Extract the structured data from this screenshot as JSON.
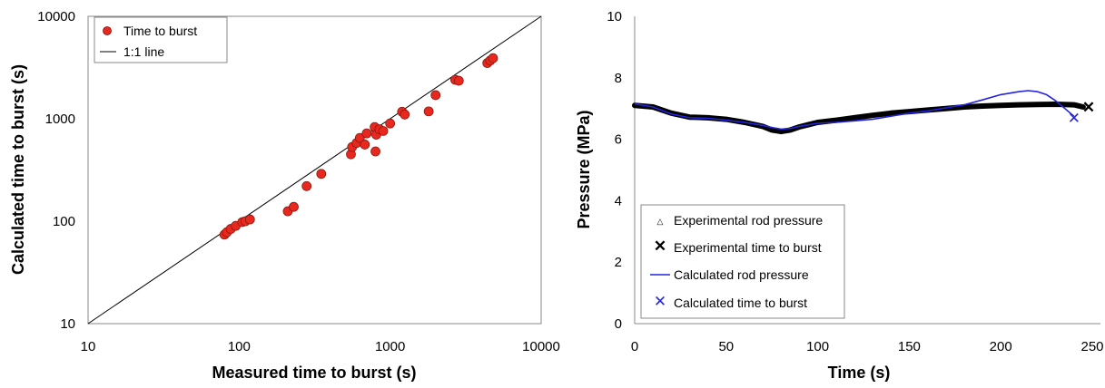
{
  "chart_data": [
    {
      "type": "scatter",
      "xscale": "log",
      "yscale": "log",
      "xlabel": "Measured time to burst (s)",
      "ylabel": "Calculated time to burst (s)",
      "xlim": [
        10,
        10000
      ],
      "ylim": [
        10,
        10000
      ],
      "xticks": [
        "10",
        "100",
        "1000",
        "10000"
      ],
      "yticks": [
        "10",
        "100",
        "1000",
        "10000"
      ],
      "grid": false,
      "legend_position": "top-left",
      "legend": [
        "Time to burst",
        "1:1 line"
      ],
      "series": [
        {
          "name": "Time to burst",
          "color": "#e8281e",
          "x": [
            80,
            83,
            88,
            95,
            105,
            110,
            118,
            210,
            230,
            280,
            350,
            550,
            560,
            600,
            630,
            680,
            700,
            790,
            800,
            810,
            850,
            900,
            1000,
            1200,
            1250,
            1800,
            2000,
            2700,
            2850,
            4400,
            4600,
            4800
          ],
          "y": [
            74,
            78,
            84,
            90,
            98,
            100,
            104,
            125,
            138,
            220,
            290,
            450,
            530,
            580,
            650,
            560,
            720,
            830,
            480,
            700,
            790,
            760,
            900,
            1170,
            1100,
            1180,
            1700,
            2400,
            2350,
            3500,
            3700,
            3900
          ]
        },
        {
          "name": "1:1 line",
          "color": "#000000",
          "x": [
            10,
            10000
          ],
          "y": [
            10,
            10000
          ]
        }
      ]
    },
    {
      "type": "line",
      "xlabel": "Time (s)",
      "ylabel": "Pressure (MPa)",
      "xlim": [
        0,
        250
      ],
      "ylim": [
        0,
        10
      ],
      "xticks": [
        "0",
        "50",
        "100",
        "150",
        "200",
        "250"
      ],
      "yticks": [
        "0",
        "2",
        "4",
        "6",
        "8",
        "10"
      ],
      "grid": false,
      "legend_position": "bottom-left",
      "legend": [
        "Experimental rod pressure",
        "Experimental time to burst",
        "Calculated rod pressure",
        "Calculated time to burst"
      ],
      "series": [
        {
          "name": "Experimental rod pressure",
          "color": "#000000",
          "x": [
            0,
            10,
            20,
            30,
            40,
            50,
            60,
            70,
            75,
            80,
            85,
            90,
            100,
            110,
            120,
            130,
            140,
            150,
            160,
            170,
            180,
            190,
            200,
            210,
            220,
            230,
            240,
            245
          ],
          "y": [
            7.1,
            7.05,
            6.85,
            6.72,
            6.7,
            6.65,
            6.55,
            6.42,
            6.3,
            6.25,
            6.3,
            6.4,
            6.55,
            6.62,
            6.7,
            6.78,
            6.85,
            6.9,
            6.95,
            7.0,
            7.05,
            7.08,
            7.1,
            7.12,
            7.13,
            7.14,
            7.12,
            7.05
          ]
        },
        {
          "name": "Experimental time to burst",
          "color": "#000000",
          "x": [
            248
          ],
          "y": [
            7.05
          ]
        },
        {
          "name": "Calculated rod pressure",
          "color": "#2424e0",
          "x": [
            0,
            10,
            20,
            30,
            40,
            50,
            60,
            70,
            75,
            80,
            85,
            90,
            100,
            110,
            120,
            130,
            140,
            150,
            160,
            170,
            180,
            190,
            200,
            210,
            215,
            220,
            225,
            230,
            235,
            240
          ],
          "y": [
            7.15,
            7.05,
            6.82,
            6.7,
            6.68,
            6.62,
            6.55,
            6.45,
            6.38,
            6.33,
            6.35,
            6.42,
            6.52,
            6.55,
            6.6,
            6.65,
            6.75,
            6.85,
            6.92,
            7.02,
            7.12,
            7.28,
            7.45,
            7.55,
            7.58,
            7.55,
            7.45,
            7.25,
            7.0,
            6.75
          ]
        },
        {
          "name": "Calculated time to burst",
          "color": "#2424e0",
          "x": [
            240
          ],
          "y": [
            6.7
          ]
        }
      ]
    }
  ]
}
